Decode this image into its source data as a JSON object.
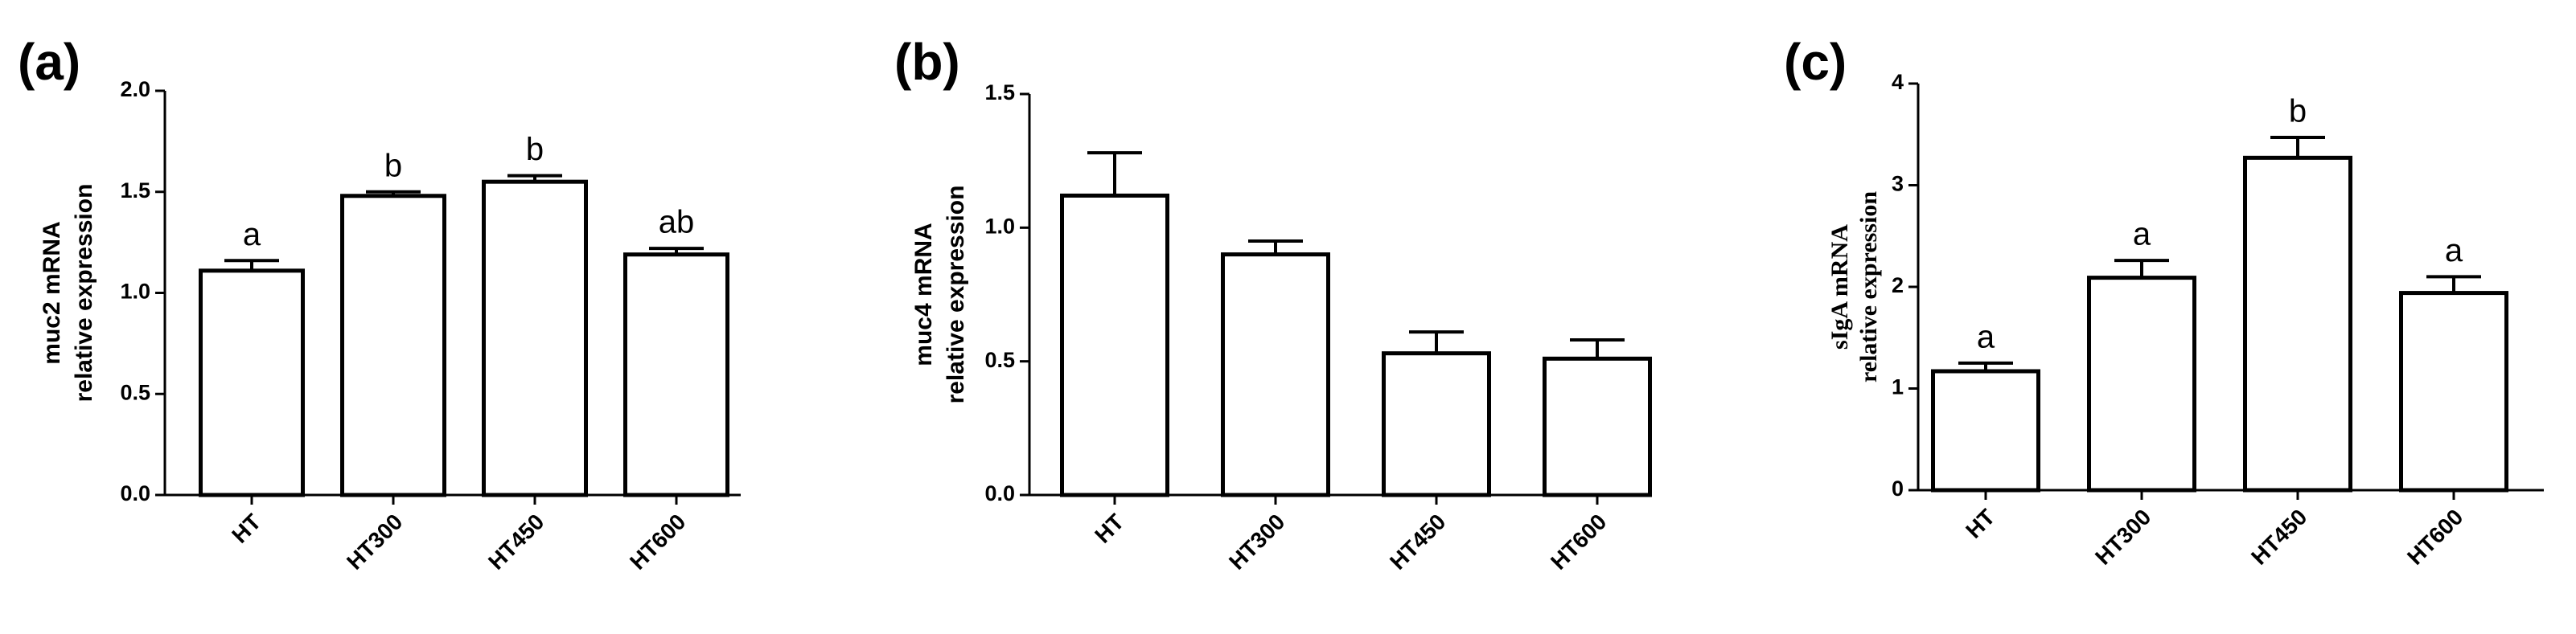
{
  "chart_data": [
    {
      "type": "bar",
      "panel_label": "(a)",
      "ylabel": [
        "muc2 mRNA",
        "relative expression"
      ],
      "categories": [
        "HT",
        "HT300",
        "HT450",
        "HT600"
      ],
      "values": [
        1.11,
        1.48,
        1.55,
        1.19
      ],
      "errors": [
        0.05,
        0.02,
        0.03,
        0.03
      ],
      "annotations": [
        "a",
        "b",
        "b",
        "ab"
      ],
      "color": "#ffffff",
      "edgecolor": "#000000",
      "ylim": [
        0,
        2
      ],
      "yticks": [
        {
          "value": 0,
          "label": "0.0"
        },
        {
          "value": 0.5,
          "label": "0.5"
        },
        {
          "value": 1,
          "label": "1.0"
        },
        {
          "value": 1.5,
          "label": "1.5"
        },
        {
          "value": 2,
          "label": "2.0"
        }
      ]
    },
    {
      "type": "bar",
      "panel_label": "(b)",
      "ylabel": [
        "muc4 mRNA",
        "relative expression"
      ],
      "categories": [
        "HT",
        "HT300",
        "HT450",
        "HT600"
      ],
      "values": [
        1.12,
        0.9,
        0.53,
        0.51
      ],
      "errors": [
        0.16,
        0.05,
        0.08,
        0.07
      ],
      "color": "#ffffff",
      "edgecolor": "#000000",
      "ylim": [
        0,
        1.5
      ],
      "yticks": [
        {
          "value": 0,
          "label": "0.0"
        },
        {
          "value": 0.5,
          "label": "0.5"
        },
        {
          "value": 1,
          "label": "1.0"
        },
        {
          "value": 1.5,
          "label": "1.5"
        }
      ]
    },
    {
      "type": "bar",
      "panel_label": "(c)",
      "ylabel": [
        "sIgA mRNA",
        "relative expression"
      ],
      "categories": [
        "HT",
        "HT300",
        "HT450",
        "HT600"
      ],
      "values": [
        1.17,
        2.09,
        3.27,
        1.94
      ],
      "errors": [
        0.08,
        0.17,
        0.2,
        0.16
      ],
      "annotations": [
        "a",
        "a",
        "b",
        "a"
      ],
      "color": "#ffffff",
      "edgecolor": "#000000",
      "ylim": [
        0,
        4
      ],
      "yticks": [
        0,
        1,
        2,
        3,
        4
      ]
    }
  ]
}
